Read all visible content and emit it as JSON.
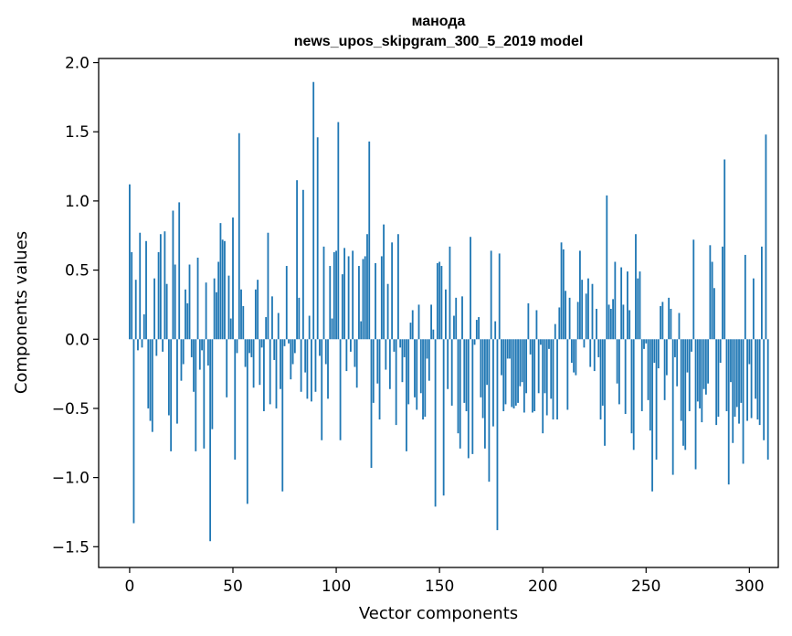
{
  "chart_data": {
    "type": "bar",
    "title_line1": "манода",
    "title_line2": "news_upos_skipgram_300_5_2019 model",
    "xlabel": "Vector components",
    "ylabel": "Components values",
    "xlim": [
      -15,
      314
    ],
    "ylim": [
      -1.65,
      2.03
    ],
    "xticks": [
      0,
      50,
      100,
      150,
      200,
      250,
      300
    ],
    "yticks": [
      -1.5,
      -1.0,
      -0.5,
      0.0,
      0.5,
      1.0,
      1.5,
      2.0
    ],
    "ytick_labels": [
      "−1.5",
      "−1.0",
      "−0.5",
      "0.0",
      "0.5",
      "1.0",
      "1.5",
      "2.0"
    ],
    "bar_color": "#1f77b4",
    "grid": false,
    "values": [
      1.12,
      0.63,
      -1.33,
      0.43,
      -0.08,
      0.77,
      -0.06,
      0.18,
      0.71,
      -0.5,
      -0.59,
      -0.67,
      0.44,
      -0.12,
      0.63,
      0.76,
      -0.09,
      0.78,
      0.4,
      -0.55,
      -0.81,
      0.93,
      0.54,
      -0.61,
      0.99,
      -0.3,
      -0.18,
      0.36,
      0.26,
      0.54,
      -0.13,
      -0.38,
      -0.81,
      0.59,
      -0.22,
      -0.08,
      -0.79,
      0.41,
      -0.19,
      -1.46,
      -0.65,
      0.44,
      0.34,
      0.56,
      0.84,
      0.72,
      0.71,
      -0.42,
      0.46,
      0.15,
      0.88,
      -0.87,
      -0.1,
      1.49,
      0.36,
      0.24,
      -0.2,
      -1.19,
      -0.1,
      -0.13,
      -0.35,
      0.36,
      0.43,
      -0.33,
      -0.06,
      -0.52,
      0.16,
      0.77,
      -0.47,
      0.31,
      -0.15,
      -0.5,
      0.19,
      -0.36,
      -1.1,
      -0.05,
      0.53,
      -0.03,
      -0.29,
      -0.18,
      -0.1,
      1.15,
      0.3,
      -0.38,
      1.08,
      -0.24,
      -0.43,
      0.17,
      -0.45,
      1.86,
      -0.38,
      1.46,
      -0.12,
      -0.73,
      0.67,
      -0.18,
      -0.43,
      0.53,
      0.15,
      0.63,
      0.64,
      1.57,
      -0.73,
      0.47,
      0.66,
      -0.23,
      0.6,
      -0.09,
      0.64,
      -0.2,
      -0.35,
      0.53,
      0.13,
      0.58,
      0.6,
      0.76,
      1.43,
      -0.93,
      -0.46,
      0.55,
      -0.32,
      -0.58,
      0.6,
      0.83,
      -0.22,
      0.4,
      -0.36,
      0.7,
      -0.09,
      -0.62,
      0.76,
      -0.06,
      -0.31,
      -0.13,
      -0.81,
      -0.47,
      0.12,
      0.21,
      -0.42,
      -0.51,
      0.25,
      -0.39,
      -0.58,
      -0.56,
      -0.14,
      -0.3,
      0.25,
      0.07,
      -1.21,
      0.55,
      0.56,
      0.53,
      -1.13,
      0.36,
      -0.36,
      0.67,
      -0.48,
      0.17,
      0.3,
      -0.68,
      -0.79,
      0.31,
      -0.46,
      -0.52,
      -0.86,
      0.74,
      -0.83,
      -0.04,
      0.14,
      0.16,
      -0.42,
      -0.57,
      -0.79,
      -0.33,
      -1.03,
      0.64,
      -0.63,
      0.13,
      -1.38,
      0.62,
      -0.26,
      -0.52,
      -0.47,
      -0.14,
      -0.14,
      -0.49,
      -0.5,
      -0.48,
      -0.46,
      -0.34,
      -0.31,
      -0.53,
      -0.39,
      0.26,
      -0.11,
      -0.53,
      -0.52,
      0.21,
      -0.39,
      -0.04,
      -0.68,
      -0.39,
      -0.55,
      -0.07,
      -0.43,
      -0.58,
      0.11,
      -0.58,
      0.23,
      0.7,
      0.65,
      0.35,
      -0.51,
      0.3,
      -0.17,
      -0.24,
      -0.26,
      0.27,
      0.64,
      0.43,
      -0.06,
      0.33,
      0.44,
      -0.2,
      0.4,
      -0.23,
      0.22,
      -0.13,
      -0.58,
      -0.48,
      -0.77,
      1.04,
      0.25,
      0.22,
      0.29,
      0.56,
      -0.32,
      -0.47,
      0.52,
      0.25,
      -0.54,
      0.49,
      0.21,
      -0.68,
      -0.8,
      0.76,
      0.44,
      0.49,
      -0.52,
      -0.07,
      -0.03,
      -0.44,
      -0.66,
      -1.1,
      -0.17,
      -0.87,
      -0.21,
      0.24,
      0.27,
      -0.44,
      -0.26,
      0.3,
      0.22,
      -0.98,
      -0.13,
      -0.34,
      0.19,
      -0.59,
      -0.77,
      -0.8,
      -0.24,
      -0.52,
      -0.09,
      0.72,
      -0.94,
      -0.45,
      -0.5,
      -0.6,
      -0.36,
      -0.4,
      -0.32,
      0.68,
      0.56,
      0.37,
      -0.62,
      -0.56,
      -0.17,
      0.67,
      1.3,
      -0.52,
      -1.05,
      -0.31,
      -0.75,
      -0.56,
      -0.49,
      -0.61,
      -0.46,
      -0.9,
      0.61,
      -0.59,
      -0.18,
      -0.57,
      0.44,
      -0.43,
      -0.58,
      -0.62,
      0.67,
      -0.73,
      1.48,
      -0.87
    ]
  }
}
